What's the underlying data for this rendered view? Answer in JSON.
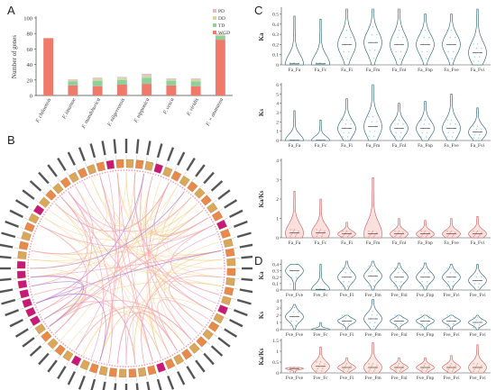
{
  "panels": {
    "a": "A",
    "b": "B",
    "c": "C",
    "d": "D"
  },
  "chart_data": [
    {
      "type": "bar",
      "stacked": true,
      "ylabel": "Number of genes",
      "ylim": [
        0,
        100
      ],
      "yticks": [
        0,
        20,
        40,
        60,
        80,
        100
      ],
      "categories": [
        "F. chiloensis",
        "F. iinumae",
        "F. mandshurica",
        "F. nilgerrensis",
        "F. nipponica",
        "F. vesca",
        "F. viridis",
        "F. × ananassa"
      ],
      "series": [
        {
          "name": "WGD",
          "color": "#f07a6a",
          "values": [
            74,
            13,
            12,
            14,
            15,
            13,
            12,
            72
          ]
        },
        {
          "name": "TD",
          "color": "#8fcf9e",
          "values": [
            0,
            5,
            7,
            6,
            8,
            6,
            6,
            5
          ]
        },
        {
          "name": "DD",
          "color": "#cfd9a0",
          "values": [
            0,
            2,
            3,
            3,
            3,
            2,
            3,
            2
          ]
        },
        {
          "name": "PD",
          "color": "#e6b8d0",
          "values": [
            0,
            1,
            1,
            1,
            2,
            1,
            1,
            1
          ]
        }
      ],
      "legend": [
        "PD",
        "DD",
        "TD",
        "WGD"
      ],
      "legend_position": "top-right"
    },
    {
      "type": "violin",
      "panel": "C",
      "categories": [
        "Fa_Fa",
        "Fa_Fc",
        "Fa_Fi",
        "Fa_Fm",
        "Fa_Fnl",
        "Fa_Fnp",
        "Fa_Fve",
        "Fa_Fvi"
      ],
      "rows": [
        {
          "ylabel": "Ka",
          "yticks": [
            0.0,
            0.1,
            0.2,
            0.3,
            0.4,
            0.5
          ],
          "ylim": [
            0,
            0.55
          ],
          "medians": [
            0.01,
            0.01,
            0.2,
            0.22,
            0.2,
            0.2,
            0.2,
            0.12
          ],
          "max": [
            0.48,
            0.45,
            0.55,
            0.55,
            0.55,
            0.5,
            0.5,
            0.55
          ]
        },
        {
          "ylabel": "Ks",
          "yticks": [
            0,
            1,
            2,
            3,
            4,
            5,
            6
          ],
          "ylim": [
            0,
            6
          ],
          "medians": [
            0.02,
            0.02,
            1.3,
            1.5,
            1.3,
            1.3,
            1.3,
            0.9
          ],
          "max": [
            3.2,
            2.2,
            4.5,
            6.0,
            4.0,
            4.2,
            5.0,
            3.5
          ]
        },
        {
          "ylabel": "Ka/Ks",
          "yticks": [
            0,
            1,
            2,
            3,
            4
          ],
          "ylim": [
            0,
            4
          ],
          "medians": [
            0.25,
            0.25,
            0.2,
            0.2,
            0.2,
            0.2,
            0.2,
            0.2
          ],
          "max": [
            2.4,
            2.0,
            0.8,
            3.1,
            1.0,
            0.9,
            1.0,
            1.1
          ]
        }
      ]
    },
    {
      "type": "violin",
      "panel": "D",
      "categories": [
        "Fve_Fve",
        "Fve_Fc",
        "Fve_Fi",
        "Fve_Fm",
        "Fve_Fnl",
        "Fve_Fnp",
        "Fve_Fvi",
        "Fve_Fvi"
      ],
      "rows": [
        {
          "ylabel": "Ka",
          "yticks": [
            0.0,
            0.1,
            0.2,
            0.3,
            0.4
          ],
          "ylim": [
            0,
            0.45
          ],
          "medians": [
            0.3,
            0.01,
            0.2,
            0.22,
            0.2,
            0.2,
            0.2,
            0.15
          ],
          "max": [
            0.4,
            0.4,
            0.45,
            0.45,
            0.42,
            0.42,
            0.4,
            0.4
          ]
        },
        {
          "ylabel": "Ks",
          "yticks": [
            0,
            1,
            2,
            3,
            4
          ],
          "ylim": [
            0,
            4
          ],
          "medians": [
            1.8,
            0.02,
            1.2,
            1.5,
            1.2,
            1.2,
            1.2,
            1.0
          ],
          "max": [
            3.5,
            1.0,
            2.0,
            4.2,
            2.0,
            2.0,
            2.0,
            2.0
          ]
        },
        {
          "ylabel": "Ka/Ks",
          "yticks": [
            0.0,
            0.5,
            1.0,
            1.5
          ],
          "ylim": [
            0,
            1.5
          ],
          "medians": [
            0.2,
            0.3,
            0.25,
            0.25,
            0.25,
            0.25,
            0.25,
            0.25
          ],
          "max": [
            0.25,
            1.2,
            0.7,
            1.4,
            0.7,
            0.7,
            0.8,
            1.3
          ]
        }
      ]
    },
    {
      "type": "circos",
      "panel": "B",
      "segments_per_side": 42
    }
  ]
}
